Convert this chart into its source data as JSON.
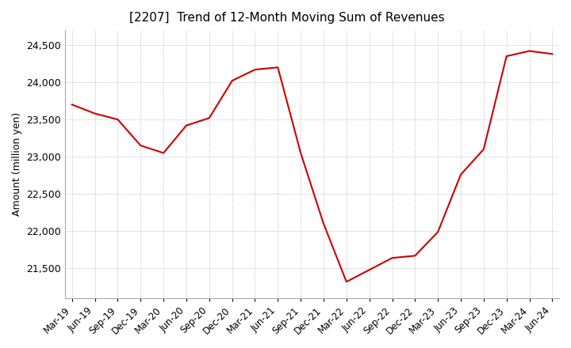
{
  "title": "[2207]  Trend of 12-Month Moving Sum of Revenues",
  "ylabel": "Amount (million yen)",
  "line_color": "#cc0000",
  "background_color": "#ffffff",
  "plot_bg_color": "#ffffff",
  "grid_color": "#aaaaaa",
  "ylim": [
    21100,
    24700
  ],
  "yticks": [
    21500,
    22000,
    22500,
    23000,
    23500,
    24000,
    24500
  ],
  "labels": [
    "Mar-19",
    "Jun-19",
    "Sep-19",
    "Dec-19",
    "Mar-20",
    "Jun-20",
    "Sep-20",
    "Dec-20",
    "Mar-21",
    "Jun-21",
    "Sep-21",
    "Dec-21",
    "Mar-22",
    "Jun-22",
    "Sep-22",
    "Dec-22",
    "Mar-23",
    "Jun-23",
    "Sep-23",
    "Dec-23",
    "Mar-24",
    "Jun-24"
  ],
  "values": [
    23700,
    23580,
    23500,
    23150,
    23050,
    23420,
    23520,
    24020,
    24170,
    24200,
    23050,
    22100,
    21320,
    21480,
    21640,
    21670,
    21990,
    22760,
    23100,
    24350,
    24420,
    24380
  ]
}
